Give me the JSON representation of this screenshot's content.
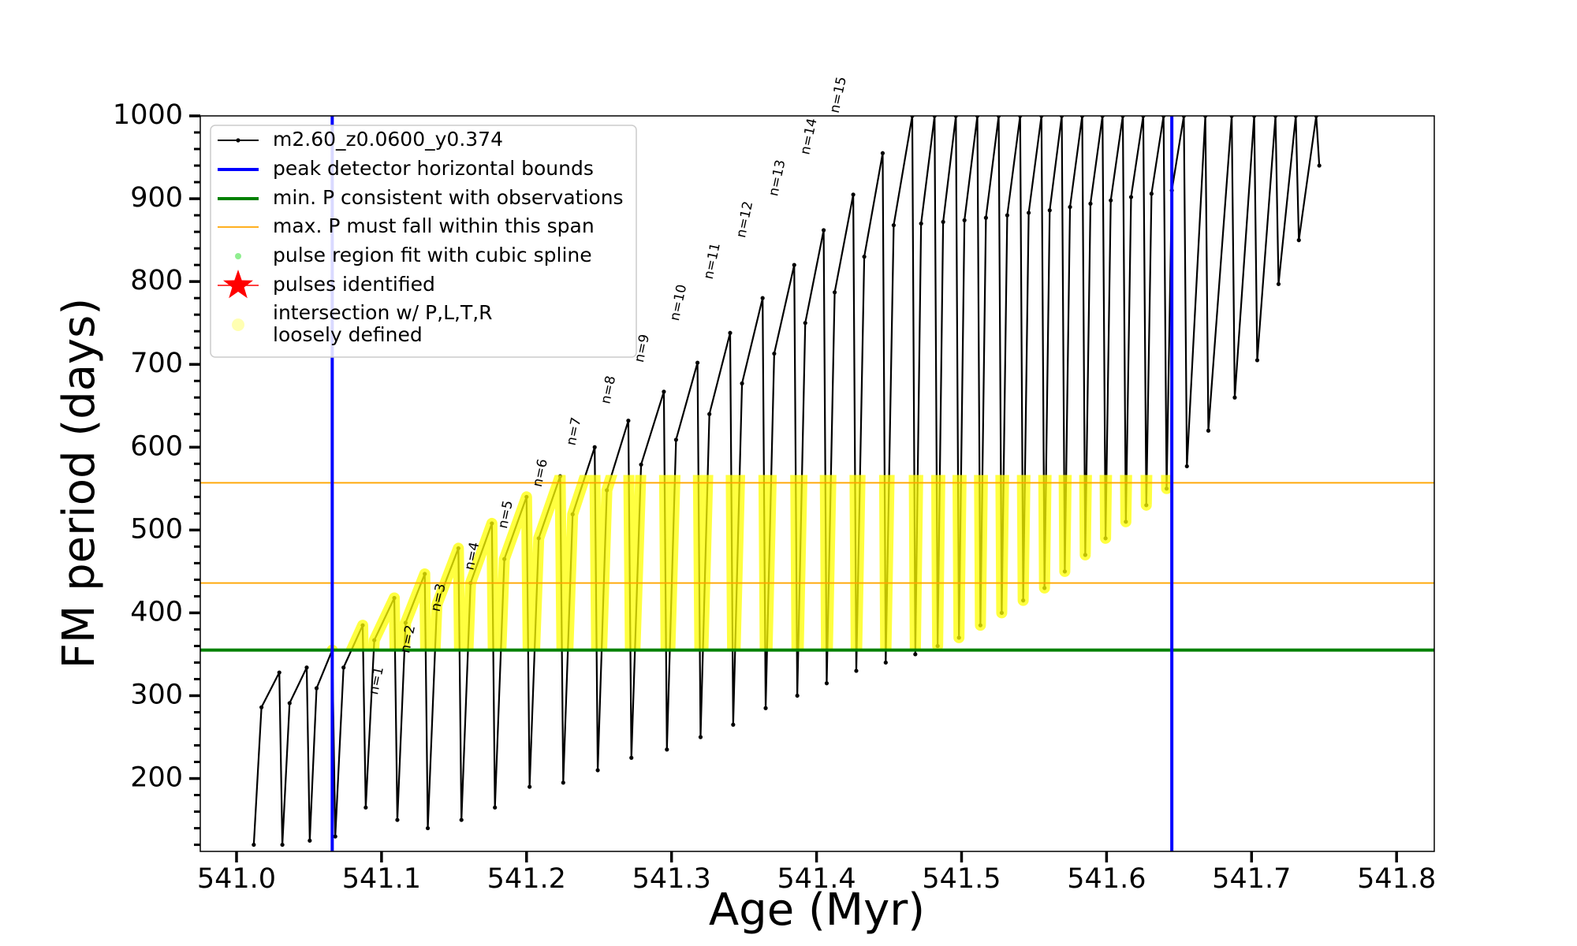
{
  "chart_data": {
    "type": "line",
    "xlabel": "Age (Myr)",
    "ylabel": "FM period (days)",
    "xlim": [
      540.975,
      541.826
    ],
    "ylim": [
      112,
      1000
    ],
    "xticks": [
      {
        "value": 541,
        "label": "541.0"
      },
      541.1,
      541.2,
      541.3,
      541.4,
      541.5,
      541.6,
      541.7,
      541.8
    ],
    "yticks": [
      200,
      300,
      400,
      500,
      600,
      700,
      800,
      900,
      1000
    ],
    "yminorticks": [
      120,
      140,
      160,
      180,
      220,
      240,
      260,
      280,
      320,
      340,
      360,
      380,
      420,
      440,
      460,
      480,
      520,
      540,
      560,
      580,
      620,
      640,
      660,
      680,
      720,
      740,
      760,
      780,
      820,
      840,
      860,
      880,
      920,
      940,
      960,
      980
    ],
    "legend": "upper left",
    "series": [
      {
        "name": "m2.60_z0.0600_y0.374",
        "color": "#000000",
        "x": [
          541.0119,
          541.0172,
          541.0295,
          541.0316,
          541.0366,
          541.0484,
          541.0505,
          541.0552,
          541.066,
          541.0681,
          541.0738,
          541.087,
          541.0891,
          541.095,
          541.1088,
          541.1109,
          541.1166,
          541.1298,
          541.1319,
          541.1382,
          541.153,
          541.1551,
          541.1614,
          541.1761,
          541.1782,
          541.1847,
          541.2,
          541.2021,
          541.2084,
          541.2232,
          541.2253,
          541.2318,
          541.247,
          541.2491,
          541.2554,
          541.2702,
          541.2723,
          541.279,
          541.2947,
          541.2968,
          541.3031,
          541.3179,
          541.32,
          541.3261,
          541.3404,
          541.3425,
          541.3486,
          541.3628,
          541.3649,
          541.3708,
          541.3846,
          541.3867,
          541.3922,
          541.4049,
          541.407,
          541.4125,
          541.4253,
          541.4274,
          541.4329,
          541.4456,
          541.4477,
          541.4532,
          541.466,
          541.4681,
          541.4721,
          541.4814,
          541.4835,
          541.4873,
          541.4961,
          541.4982,
          541.502,
          541.5109,
          541.513,
          541.5168,
          541.5256,
          541.5277,
          541.5315,
          541.5404,
          541.5425,
          541.5463,
          541.5551,
          541.5572,
          541.5608,
          541.5691,
          541.5712,
          541.5748,
          541.5832,
          541.5853,
          541.5889,
          541.5972,
          541.5993,
          541.6029,
          541.6112,
          541.6133,
          541.6169,
          541.6253,
          541.6274,
          541.631,
          541.6393,
          541.6414,
          541.645,
          541.6533,
          541.6554,
          541.6681,
          541.6702,
          541.6863,
          541.6884,
          541.7018,
          541.7039,
          541.7165,
          541.7186,
          541.7305,
          541.7326,
          541.7446,
          541.7467
        ],
        "values": [
          120,
          286,
          328,
          120,
          291,
          334,
          125,
          309,
          355,
          130,
          334,
          385,
          165,
          367,
          418,
          150,
          388,
          447,
          140,
          410,
          478,
          150,
          436,
          508,
          165,
          465,
          540,
          190,
          490,
          565,
          195,
          519,
          600,
          210,
          548,
          632,
          225,
          579,
          667,
          235,
          609,
          702,
          250,
          640,
          738,
          265,
          677,
          780,
          285,
          713,
          820,
          300,
          750,
          862,
          315,
          787,
          905,
          330,
          830,
          955,
          340,
          868,
          1000,
          350,
          870,
          1000,
          360,
          872,
          1000,
          370,
          874,
          1000,
          385,
          877,
          1000,
          400,
          880,
          1000,
          415,
          883,
          1000,
          430,
          886,
          1000,
          450,
          890,
          1000,
          470,
          894,
          1000,
          490,
          898,
          1000,
          510,
          902,
          1000,
          530,
          906,
          1000,
          550,
          910,
          1000,
          577,
          1000,
          620,
          1000,
          660,
          1000,
          705,
          1000,
          797,
          1000,
          850,
          1000,
          940
        ]
      }
    ],
    "vlines": {
      "name": "peak detector horizontal bounds",
      "color": "#0000ff",
      "values": [
        541.066,
        541.645
      ]
    },
    "hlines_min": {
      "name": "min. P consistent with observations",
      "color": "#008000",
      "values": [
        355
      ]
    },
    "hlines_max": {
      "name": "max. P must fall within this span",
      "color": "#ffa500",
      "values": [
        436,
        557
      ]
    },
    "spline_points": {
      "name": "pulse region fit with cubic spline",
      "color": "#90ee90"
    },
    "pulses": {
      "name": "pulses identified",
      "color": "#ff0000"
    },
    "intersection": {
      "name": [
        "intersection w/ P,L,T,R",
        "loosely defined"
      ],
      "color": "#ffff00"
    },
    "annotations": [
      "n=1",
      "n=2",
      "n=3",
      "n=4",
      "n=5",
      "n=6",
      "n=7",
      "n=8",
      "n=9",
      "n=10",
      "n=11",
      "n=12",
      "n=13",
      "n=14",
      "n=15"
    ]
  }
}
